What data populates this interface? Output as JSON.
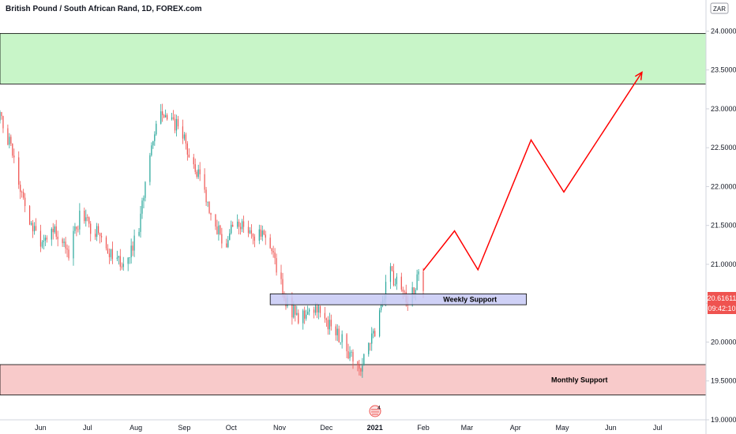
{
  "header": {
    "title": "British Pound / South African Rand, 1D, FOREX.com"
  },
  "currency_label": "ZAR",
  "colors": {
    "up": "#26a69a",
    "down": "#ef5350",
    "resistance_fill": "#c8f5c8",
    "support_fill": "#f8caca",
    "weekly_fill": "#c7c9f5",
    "projection": "#ff0000",
    "price_badge": "#ef5350"
  },
  "price_badge": {
    "price": "20.61611",
    "countdown": "09:42:10"
  },
  "zones": {
    "resistance": {
      "low": 23.32,
      "high": 23.97,
      "label": ""
    },
    "weekly": {
      "low": 20.48,
      "high": 20.62,
      "label": "Weekly Support",
      "start": "2020-10-26",
      "end": "2021-04-08"
    },
    "monthly": {
      "low": 19.32,
      "high": 19.71,
      "label": "Monthly Support"
    }
  },
  "events_marker": {
    "label": "4"
  },
  "chart_data": {
    "type": "candlestick",
    "title": "British Pound / South African Rand, 1D, FOREX.com",
    "x_type": "date",
    "xlim": [
      "2020-05-06",
      "2021-08-01"
    ],
    "ylim": [
      19.0,
      24.4
    ],
    "y_ticks": [
      {
        "value": 19.0,
        "label": "19.00000"
      },
      {
        "value": 19.5,
        "label": "19.50000"
      },
      {
        "value": 20.0,
        "label": "20.00000"
      },
      {
        "value": 20.5,
        "label": "20.50000"
      },
      {
        "value": 21.0,
        "label": "21.00000"
      },
      {
        "value": 21.5,
        "label": "21.50000"
      },
      {
        "value": 22.0,
        "label": "22.00000"
      },
      {
        "value": 22.5,
        "label": "22.50000"
      },
      {
        "value": 23.0,
        "label": "23.00000"
      },
      {
        "value": 23.5,
        "label": "23.50000"
      },
      {
        "value": 24.0,
        "label": "24.00000"
      }
    ],
    "x_ticks": [
      {
        "date": "2020-06-01",
        "label": "Jun",
        "bold": false
      },
      {
        "date": "2020-07-01",
        "label": "Jul",
        "bold": false
      },
      {
        "date": "2020-08-01",
        "label": "Aug",
        "bold": false
      },
      {
        "date": "2020-09-01",
        "label": "Sep",
        "bold": false
      },
      {
        "date": "2020-10-01",
        "label": "Oct",
        "bold": false
      },
      {
        "date": "2020-11-01",
        "label": "Nov",
        "bold": false
      },
      {
        "date": "2020-12-01",
        "label": "Dec",
        "bold": false
      },
      {
        "date": "2021-01-01",
        "label": "2021",
        "bold": true
      },
      {
        "date": "2021-02-01",
        "label": "Feb",
        "bold": false
      },
      {
        "date": "2021-03-01",
        "label": "Mar",
        "bold": false
      },
      {
        "date": "2021-04-01",
        "label": "Apr",
        "bold": false
      },
      {
        "date": "2021-05-01",
        "label": "May",
        "bold": false
      },
      {
        "date": "2021-06-01",
        "label": "Jun",
        "bold": false
      },
      {
        "date": "2021-07-01",
        "label": "Jul",
        "bold": false
      }
    ],
    "price_path": [
      {
        "date": "2020-05-06",
        "value": 22.85
      },
      {
        "date": "2020-05-12",
        "value": 22.55
      },
      {
        "date": "2020-05-18",
        "value": 22.05
      },
      {
        "date": "2020-05-24",
        "value": 21.55
      },
      {
        "date": "2020-06-02",
        "value": 21.3
      },
      {
        "date": "2020-06-10",
        "value": 21.5
      },
      {
        "date": "2020-06-18",
        "value": 21.1
      },
      {
        "date": "2020-06-26",
        "value": 21.6
      },
      {
        "date": "2020-07-05",
        "value": 21.45
      },
      {
        "date": "2020-07-15",
        "value": 21.2
      },
      {
        "date": "2020-07-25",
        "value": 20.95
      },
      {
        "date": "2020-08-03",
        "value": 21.5
      },
      {
        "date": "2020-08-10",
        "value": 22.4
      },
      {
        "date": "2020-08-16",
        "value": 23.05
      },
      {
        "date": "2020-08-23",
        "value": 22.9
      },
      {
        "date": "2020-08-30",
        "value": 22.7
      },
      {
        "date": "2020-09-06",
        "value": 22.35
      },
      {
        "date": "2020-09-13",
        "value": 21.95
      },
      {
        "date": "2020-09-20",
        "value": 21.55
      },
      {
        "date": "2020-09-27",
        "value": 21.25
      },
      {
        "date": "2020-10-04",
        "value": 21.6
      },
      {
        "date": "2020-10-12",
        "value": 21.35
      },
      {
        "date": "2020-10-20",
        "value": 21.45
      },
      {
        "date": "2020-10-28",
        "value": 21.05
      },
      {
        "date": "2020-11-04",
        "value": 20.6
      },
      {
        "date": "2020-11-12",
        "value": 20.3
      },
      {
        "date": "2020-11-20",
        "value": 20.45
      },
      {
        "date": "2020-11-28",
        "value": 20.35
      },
      {
        "date": "2020-12-07",
        "value": 20.1
      },
      {
        "date": "2020-12-14",
        "value": 19.95
      },
      {
        "date": "2020-12-21",
        "value": 19.6
      },
      {
        "date": "2020-12-28",
        "value": 19.95
      },
      {
        "date": "2021-01-04",
        "value": 20.3
      },
      {
        "date": "2021-01-10",
        "value": 20.9
      },
      {
        "date": "2021-01-17",
        "value": 20.75
      },
      {
        "date": "2021-01-22",
        "value": 20.45
      },
      {
        "date": "2021-01-29",
        "value": 20.9
      },
      {
        "date": "2021-02-01",
        "value": 20.62
      }
    ],
    "projection": [
      {
        "date": "2021-02-01",
        "value": 20.92
      },
      {
        "date": "2021-02-21",
        "value": 21.43
      },
      {
        "date": "2021-03-08",
        "value": 20.93
      },
      {
        "date": "2021-04-11",
        "value": 22.6
      },
      {
        "date": "2021-05-02",
        "value": 21.93
      },
      {
        "date": "2021-06-21",
        "value": 23.47
      }
    ]
  }
}
